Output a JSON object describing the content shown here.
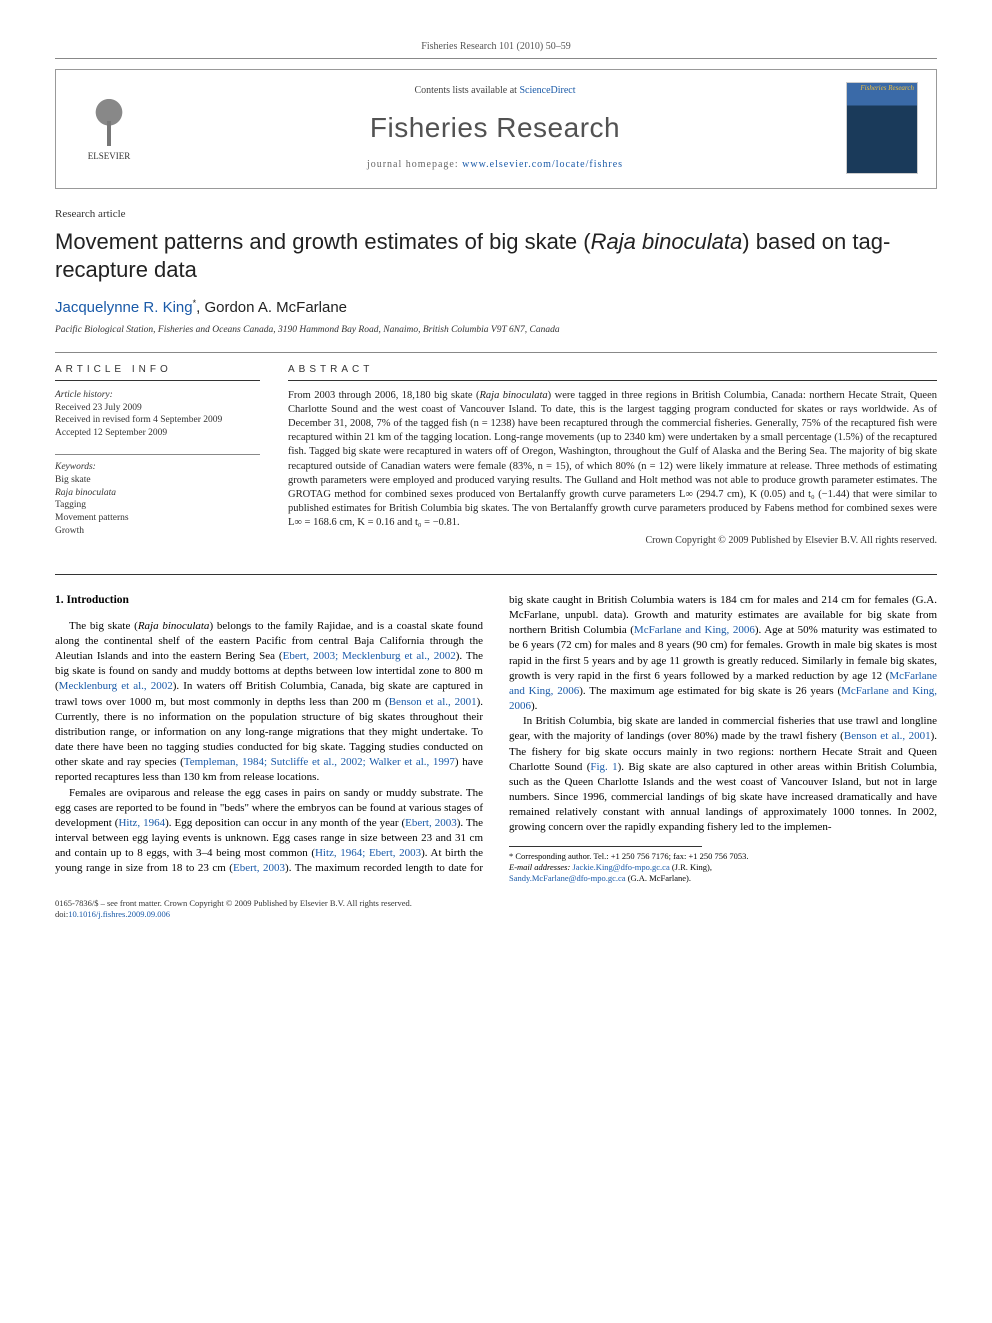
{
  "header": {
    "running_head": "Fisheries Research 101 (2010) 50–59",
    "contents_prefix": "Contents lists available at ",
    "contents_link": "ScienceDirect",
    "journal_name": "Fisheries Research",
    "homepage_prefix": "journal homepage: ",
    "homepage_url": "www.elsevier.com/locate/fishres",
    "publisher_label": "ELSEVIER",
    "cover_label": "Fisheries Research"
  },
  "article": {
    "type": "Research article",
    "title_prefix": "Movement patterns and growth estimates of big skate (",
    "title_italic": "Raja binoculata",
    "title_suffix": ") based on tag-recapture data",
    "authors_html": "Jacquelynne R. King",
    "author_sup": "*",
    "author2": ", Gordon A. McFarlane",
    "affiliation": "Pacific Biological Station, Fisheries and Oceans Canada, 3190 Hammond Bay Road, Nanaimo, British Columbia V9T 6N7, Canada"
  },
  "info": {
    "heading": "ARTICLE INFO",
    "history_label": "Article history:",
    "received": "Received 23 July 2009",
    "revised": "Received in revised form 4 September 2009",
    "accepted": "Accepted 12 September 2009",
    "keywords_label": "Keywords:",
    "k1": "Big skate",
    "k2": "Raja binoculata",
    "k3": "Tagging",
    "k4": "Movement patterns",
    "k5": "Growth"
  },
  "abstract": {
    "heading": "ABSTRACT",
    "text_1": "From 2003 through 2006, 18,180 big skate (",
    "species": "Raja binoculata",
    "text_2": ") were tagged in three regions in British Columbia, Canada: northern Hecate Strait, Queen Charlotte Sound and the west coast of Vancouver Island. To date, this is the largest tagging program conducted for skates or rays worldwide. As of December 31, 2008, 7% of the tagged fish (n = 1238) have been recaptured through the commercial fisheries. Generally, 75% of the recaptured fish were recaptured within 21 km of the tagging location. Long-range movements (up to 2340 km) were undertaken by a small percentage (1.5%) of the recaptured fish. Tagged big skate were recaptured in waters off of Oregon, Washington, throughout the Gulf of Alaska and the Bering Sea. The majority of big skate recaptured outside of Canadian waters were female (83%, n = 15), of which 80% (n = 12) were likely immature at release. Three methods of estimating growth parameters were employed and produced varying results. The Gulland and Holt method was not able to produce growth parameter estimates. The GROTAG method for combined sexes produced von Bertalanffy growth curve parameters L∞ (294.7 cm), K (0.05) and t₀ (−1.44) that were similar to published estimates for British Columbia big skates. The von Bertalanffy growth curve parameters produced by Fabens method for combined sexes were L∞ = 168.6 cm, K = 0.16 and t₀ = −0.81.",
    "copyright": "Crown Copyright © 2009 Published by Elsevier B.V. All rights reserved."
  },
  "body": {
    "section_heading": "1. Introduction",
    "p1a": "The big skate (",
    "p1_sp": "Raja binoculata",
    "p1b": ") belongs to the family Rajidae, and is a coastal skate found along the continental shelf of the eastern Pacific from central Baja California through the Aleutian Islands and into the eastern Bering Sea (",
    "p1_c1": "Ebert, 2003; Mecklenburg et al., 2002",
    "p1c": "). The big skate is found on sandy and muddy bottoms at depths between low intertidal zone to 800 m (",
    "p1_c2": "Mecklenburg et al., 2002",
    "p1d": "). In waters off British Columbia, Canada, big skate are captured in trawl tows over 1000 m, but most commonly in depths less than 200 m (",
    "p1_c3": "Benson et al., 2001",
    "p1e": "). Currently, there is no information on the population structure of big skates throughout their distribution range, or information on any long-range migrations that they might undertake. To date there have been no tagging studies conducted for big skate. Tagging studies conducted on other skate and ray species (",
    "p1_c4": "Templeman, 1984; Sutcliffe et al., 2002; Walker et al., 1997",
    "p1f": ") have reported recaptures less than 130 km from release locations.",
    "p2a": "Females are oviparous and release the egg cases in pairs on sandy or muddy substrate. The egg cases are reported to be found in \"beds\" where the embryos can be found at various stages of development (",
    "p2_c1": "Hitz, 1964",
    "p2b": "). Egg deposition can occur in any month of the year (",
    "p2_c2": "Ebert, 2003",
    "p2c": "). The interval between egg laying events is unknown. Egg cases range in size between 23 and 31 cm and contain up to 8 eggs, with 3–4 being most common (",
    "p2_c3": "Hitz, 1964; Ebert, 2003",
    "p2d": "). At birth the young range in size from 18 to 23 cm (",
    "p2_c4": "Ebert, 2003",
    "p2e": "). The maximum recorded length to date for big skate caught in British Columbia waters is 184 cm for males and 214 cm for females (G.A. McFarlane, unpubl. data). Growth and maturity estimates are available for big skate from northern British Columbia (",
    "p2_c5": "McFarlane and King, 2006",
    "p2f": "). Age at 50% maturity was estimated to be 6 years (72 cm) for males and 8 years (90 cm) for females. Growth in male big skates is most rapid in the first 5 years and by age 11 growth is greatly reduced. Similarly in female big skates, growth is very rapid in the first 6 years followed by a marked reduction by age 12 (",
    "p2_c6": "McFarlane and King, 2006",
    "p2g": "). The maximum age estimated for big skate is 26 years (",
    "p2_c7": "McFarlane and King, 2006",
    "p2h": ").",
    "p3a": "In British Columbia, big skate are landed in commercial fisheries that use trawl and longline gear, with the majority of landings (over 80%) made by the trawl fishery (",
    "p3_c1": "Benson et al., 2001",
    "p3b": "). The fishery for big skate occurs mainly in two regions: northern Hecate Strait and Queen Charlotte Sound (",
    "p3_c2": "Fig. 1",
    "p3c": "). Big skate are also captured in other areas within British Columbia, such as the Queen Charlotte Islands and the west coast of Vancouver Island, but not in large numbers. Since 1996, commercial landings of big skate have increased dramatically and have remained relatively constant with annual landings of approximately 1000 tonnes. In 2002, growing concern over the rapidly expanding fishery led to the implemen-"
  },
  "footnote": {
    "corr_label": "* Corresponding author. Tel.: +1 250 756 7176; fax: +1 250 756 7053.",
    "email_label": "E-mail addresses: ",
    "email1": "Jackie.King@dfo-mpo.gc.ca",
    "email1_sfx": " (J.R. King),",
    "email2": "Sandy.McFarlane@dfo-mpo.gc.ca",
    "email2_sfx": " (G.A. McFarlane)."
  },
  "bottom": {
    "line1": "0165-7836/$ – see front matter. Crown Copyright © 2009 Published by Elsevier B.V. All rights reserved.",
    "doi_prefix": "doi:",
    "doi": "10.1016/j.fishres.2009.09.006"
  }
}
